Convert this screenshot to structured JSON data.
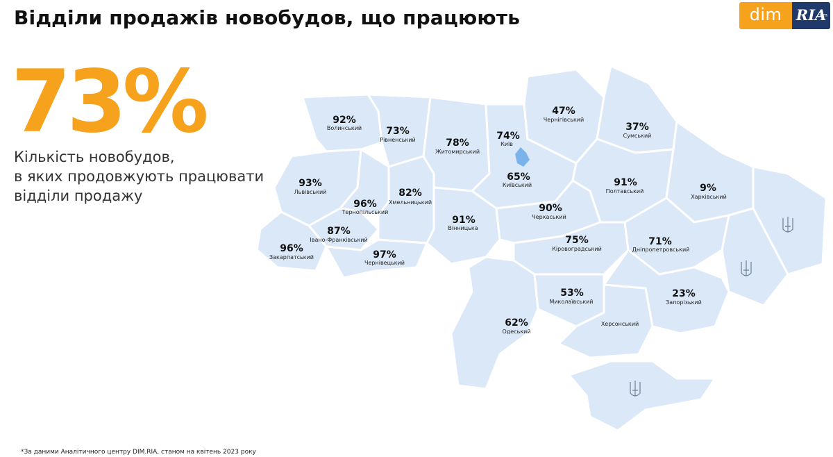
{
  "title": "Відділи продажів новобудов, що працюють",
  "logo": {
    "part1": "dim",
    "part2": "RIA",
    "part3": ".com"
  },
  "headline_value": "73%",
  "description_lines": [
    "Кількість новобудов,",
    "в яких продовжують працювати",
    "відділи продажу"
  ],
  "regions": [
    {
      "name": "Волинський",
      "value": "92%"
    },
    {
      "name": "Рівненський",
      "value": "73%"
    },
    {
      "name": "Житомирський",
      "value": "78%"
    },
    {
      "name": "Київ",
      "value": "74%"
    },
    {
      "name": "Чернігівський",
      "value": "47%"
    },
    {
      "name": "Сумський",
      "value": "37%"
    },
    {
      "name": "Львівський",
      "value": "93%"
    },
    {
      "name": "Тернопільський",
      "value": "96%"
    },
    {
      "name": "Хмельницький",
      "value": "82%"
    },
    {
      "name": "Київський",
      "value": "65%"
    },
    {
      "name": "Полтавський",
      "value": "91%"
    },
    {
      "name": "Харківський",
      "value": "9%"
    },
    {
      "name": "Вінницька",
      "value": "91%"
    },
    {
      "name": "Черкаський",
      "value": "90%"
    },
    {
      "name": "Івано-Франківський",
      "value": "87%"
    },
    {
      "name": "Закарпатський",
      "value": "96%"
    },
    {
      "name": "Чернівецький",
      "value": "97%"
    },
    {
      "name": "Кіровоградський",
      "value": "75%"
    },
    {
      "name": "Дніпропетровський",
      "value": "71%"
    },
    {
      "name": "Миколаївський",
      "value": "53%"
    },
    {
      "name": "Запорізький",
      "value": "23%"
    },
    {
      "name": "Одеський",
      "value": "62%"
    },
    {
      "name": "Херсонський",
      "value": ""
    }
  ],
  "colors": {
    "accent": "#f6a21d",
    "map_fill": "#dbe8f8",
    "kyiv_fill": "#7ab3ea",
    "region_border": "#ffffff",
    "trident": "#6f7f94"
  },
  "footnote": "*За даними Аналітичного центру DIM.RIA, станом на квітень 2023 року"
}
